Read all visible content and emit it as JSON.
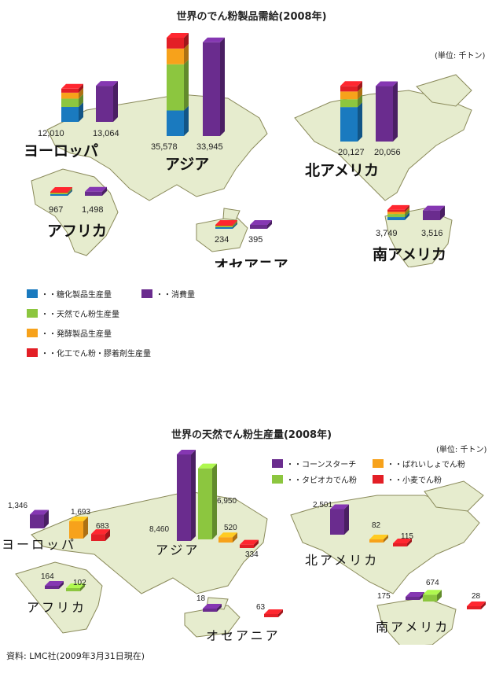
{
  "chart_data": [
    {
      "type": "bar",
      "title": "世界のでん粉製品需給(2008年)",
      "unit": "(単位: 千トン)",
      "regions": [
        "ヨーロッパ",
        "アジア",
        "北アメリカ",
        "アフリカ",
        "オセアニア",
        "南アメリカ"
      ],
      "series": [
        {
          "name": "糖化製品生産量",
          "color": "#1a7abf"
        },
        {
          "name": "天然でん粉生産量",
          "color": "#8cc63f"
        },
        {
          "name": "発酵製品生産量",
          "color": "#f7a21b"
        },
        {
          "name": "化工でん粉・膠着剤生産量",
          "color": "#e31f26"
        },
        {
          "name": "消費量",
          "color": "#6a2c8e"
        }
      ],
      "production_totals": [
        12010,
        35578,
        20127,
        967,
        234,
        3749
      ],
      "consumption": [
        13064,
        33945,
        20056,
        1498,
        395,
        3516
      ]
    },
    {
      "type": "bar",
      "title": "世界の天然でん粉生産量(2008年)",
      "unit": "(単位: 千トン)",
      "regions": [
        "ヨーロッパ",
        "アジア",
        "北アメリカ",
        "アフリカ",
        "オセアニア",
        "南アメリカ"
      ],
      "series": [
        {
          "name": "コーンスターチ",
          "color": "#6a2c8e",
          "values": [
            1346,
            8460,
            2501,
            164,
            18,
            175
          ]
        },
        {
          "name": "タピオカでん粉",
          "color": "#8cc63f",
          "values": [
            null,
            6950,
            null,
            102,
            null,
            674
          ]
        },
        {
          "name": "ばれいしょでん粉",
          "color": "#f7a21b",
          "values": [
            1693,
            520,
            82,
            null,
            null,
            null
          ]
        },
        {
          "name": "小麦でん粉",
          "color": "#e31f26",
          "values": [
            683,
            334,
            115,
            null,
            63,
            28
          ]
        }
      ]
    }
  ],
  "chart1_labels": {
    "region_europe": "ヨーロッパ",
    "region_asia": "アジア",
    "region_namerica": "北アメリカ",
    "region_africa": "アフリカ",
    "region_oceania": "オセアニア",
    "region_samerica": "南アメリカ",
    "eu_prod": "12,010",
    "eu_cons": "13,064",
    "as_prod": "35,578",
    "as_cons": "33,945",
    "na_prod": "20,127",
    "na_cons": "20,056",
    "af_prod": "967",
    "af_cons": "1,498",
    "oc_prod": "234",
    "oc_cons": "395",
    "sa_prod": "3,749",
    "sa_cons": "3,516"
  },
  "chart2_labels": {
    "region_europe": "ヨーロッパ",
    "region_asia": "アジア",
    "region_namerica": "北アメリカ",
    "region_africa": "アフリカ",
    "region_oceania": "オセアニア",
    "region_samerica": "南アメリカ",
    "eu_corn": "1,346",
    "eu_potato": "1,693",
    "eu_wheat": "683",
    "as_corn": "8,460",
    "as_tapioca": "6,950",
    "as_potato": "520",
    "as_wheat": "334",
    "na_corn": "2,501",
    "na_potato": "82",
    "na_wheat": "115",
    "af_corn": "164",
    "af_tapioca": "102",
    "oc_corn": "18",
    "oc_wheat": "63",
    "sa_corn": "175",
    "sa_tapioca": "674",
    "sa_wheat": "28"
  },
  "legend1": [
    "・・糖化製品生産量",
    "・・消費量",
    "・・天然でん粉生産量",
    "・・発酵製品生産量",
    "・・化工でん粉・膠着剤生産量"
  ],
  "legend2": [
    "・・コーンスターチ",
    "・・ばれいしょでん粉",
    "・・タピオカでん粉",
    "・・小麦でん粉"
  ],
  "source": "資料: LMC社(2009年3月31日現在)"
}
